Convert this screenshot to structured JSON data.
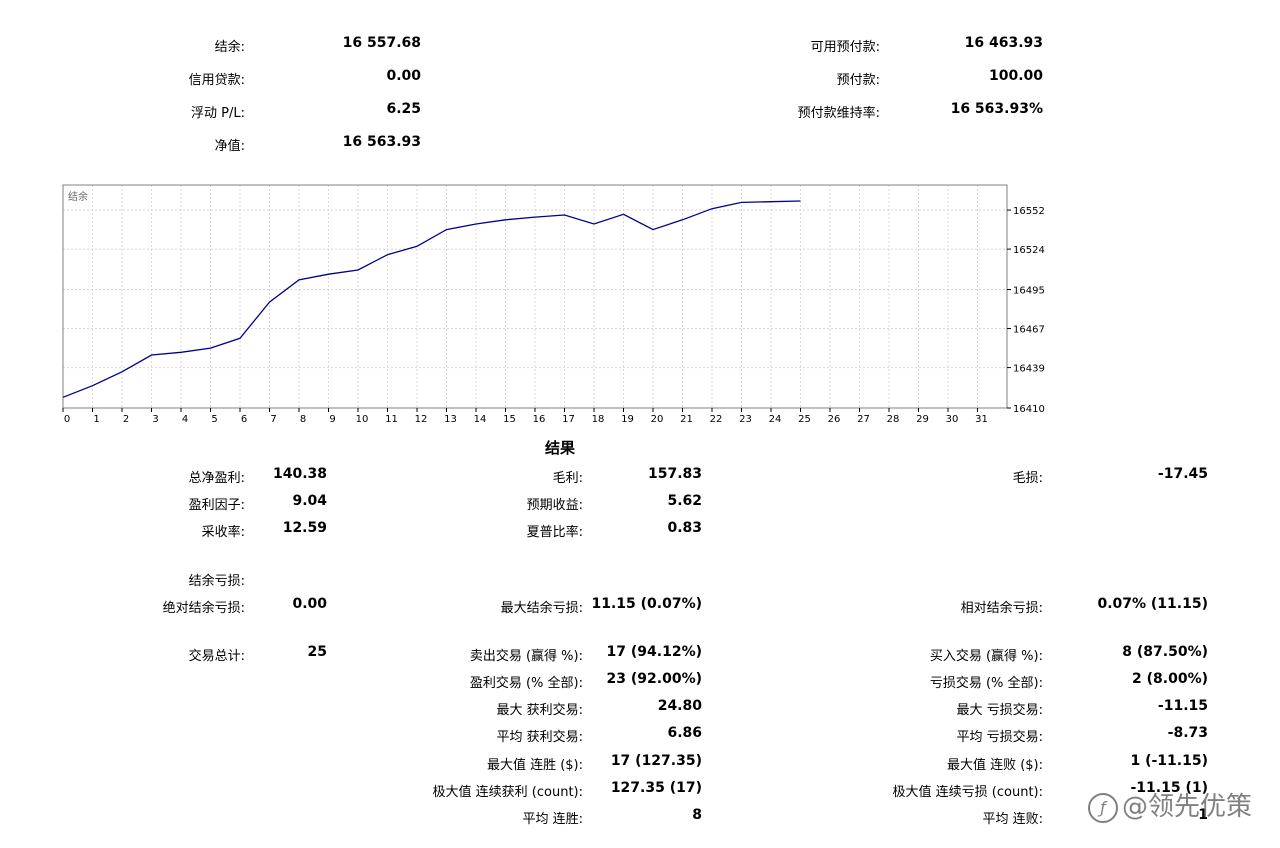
{
  "summary": {
    "left": [
      {
        "label": "结余:",
        "value": "16 557.68"
      },
      {
        "label": "信用贷款:",
        "value": "0.00"
      },
      {
        "label": "浮动 P/L:",
        "value": "6.25"
      },
      {
        "label": "净值:",
        "value": "16 563.93"
      }
    ],
    "right": [
      {
        "label": "可用预付款:",
        "value": "16 463.93"
      },
      {
        "label": "预付款:",
        "value": "100.00"
      },
      {
        "label": "预付款维持率:",
        "value": "16 563.93%"
      }
    ]
  },
  "chart_data": {
    "type": "line",
    "title": "结余",
    "x": [
      0,
      1,
      2,
      3,
      4,
      5,
      6,
      7,
      8,
      9,
      10,
      11,
      12,
      13,
      14,
      15,
      16,
      17,
      18,
      19,
      20,
      21,
      22,
      23,
      24,
      25
    ],
    "series": [
      {
        "values": [
          16417.7,
          16426,
          16436,
          16448,
          16450,
          16453,
          16460,
          16486,
          16502,
          16506,
          16509,
          16520,
          16526,
          16538,
          16542,
          16545,
          16547,
          16548.5,
          16542,
          16549,
          16538,
          16545,
          16553,
          16557.5,
          16558,
          16558.5
        ]
      }
    ],
    "x_ticks": [
      0,
      1,
      2,
      3,
      4,
      5,
      6,
      7,
      8,
      9,
      10,
      11,
      12,
      13,
      14,
      15,
      16,
      17,
      18,
      19,
      20,
      21,
      22,
      23,
      24,
      25,
      26,
      27,
      28,
      29,
      30,
      31
    ],
    "y_ticks": [
      16410,
      16439,
      16467,
      16495,
      16524,
      16552
    ],
    "xlim": [
      0,
      32
    ],
    "ylim": [
      16410,
      16570
    ],
    "grid": true,
    "line_color": "#00008b"
  },
  "results": {
    "title": "结果",
    "col1": [
      {
        "label": "总净盈利:",
        "value": "140.38"
      },
      {
        "label": "盈利因子:",
        "value": "9.04"
      },
      {
        "label": "采收率:",
        "value": "12.59"
      },
      {
        "label": "结余亏损:",
        "value": ""
      },
      {
        "label": "绝对结余亏损:",
        "value": "0.00"
      },
      {
        "label": "交易总计:",
        "value": "25"
      }
    ],
    "col2": [
      {
        "label": "毛利:",
        "value": "157.83"
      },
      {
        "label": "预期收益:",
        "value": "5.62"
      },
      {
        "label": "夏普比率:",
        "value": "0.83"
      },
      {
        "label": "最大结余亏损:",
        "value": "11.15 (0.07%)"
      },
      {
        "label": "卖出交易 (赢得 %):",
        "value": "17 (94.12%)"
      },
      {
        "label": "盈利交易 (% 全部):",
        "value": "23 (92.00%)"
      },
      {
        "label": "最大 获利交易:",
        "value": "24.80"
      },
      {
        "label": "平均 获利交易:",
        "value": "6.86"
      },
      {
        "label": "最大值 连胜 ($):",
        "value": "17 (127.35)"
      },
      {
        "label": "极大值 连续获利 (count):",
        "value": "127.35 (17)"
      },
      {
        "label": "平均 连胜:",
        "value": "8"
      }
    ],
    "col3": [
      {
        "label": "毛损:",
        "value": "-17.45"
      },
      {
        "label": "相对结余亏损:",
        "value": "0.07% (11.15)"
      },
      {
        "label": "买入交易 (赢得 %):",
        "value": "8 (87.50%)"
      },
      {
        "label": "亏损交易 (% 全部):",
        "value": "2 (8.00%)"
      },
      {
        "label": "最大 亏损交易:",
        "value": "-11.15"
      },
      {
        "label": "平均 亏损交易:",
        "value": "-8.73"
      },
      {
        "label": "最大值 连败 ($):",
        "value": "1 (-11.15)"
      },
      {
        "label": "极大值 连续亏损 (count):",
        "value": "-11.15 (1)"
      },
      {
        "label": "平均 连败:",
        "value": "1"
      }
    ]
  },
  "watermark": {
    "text": "@领先优策"
  }
}
